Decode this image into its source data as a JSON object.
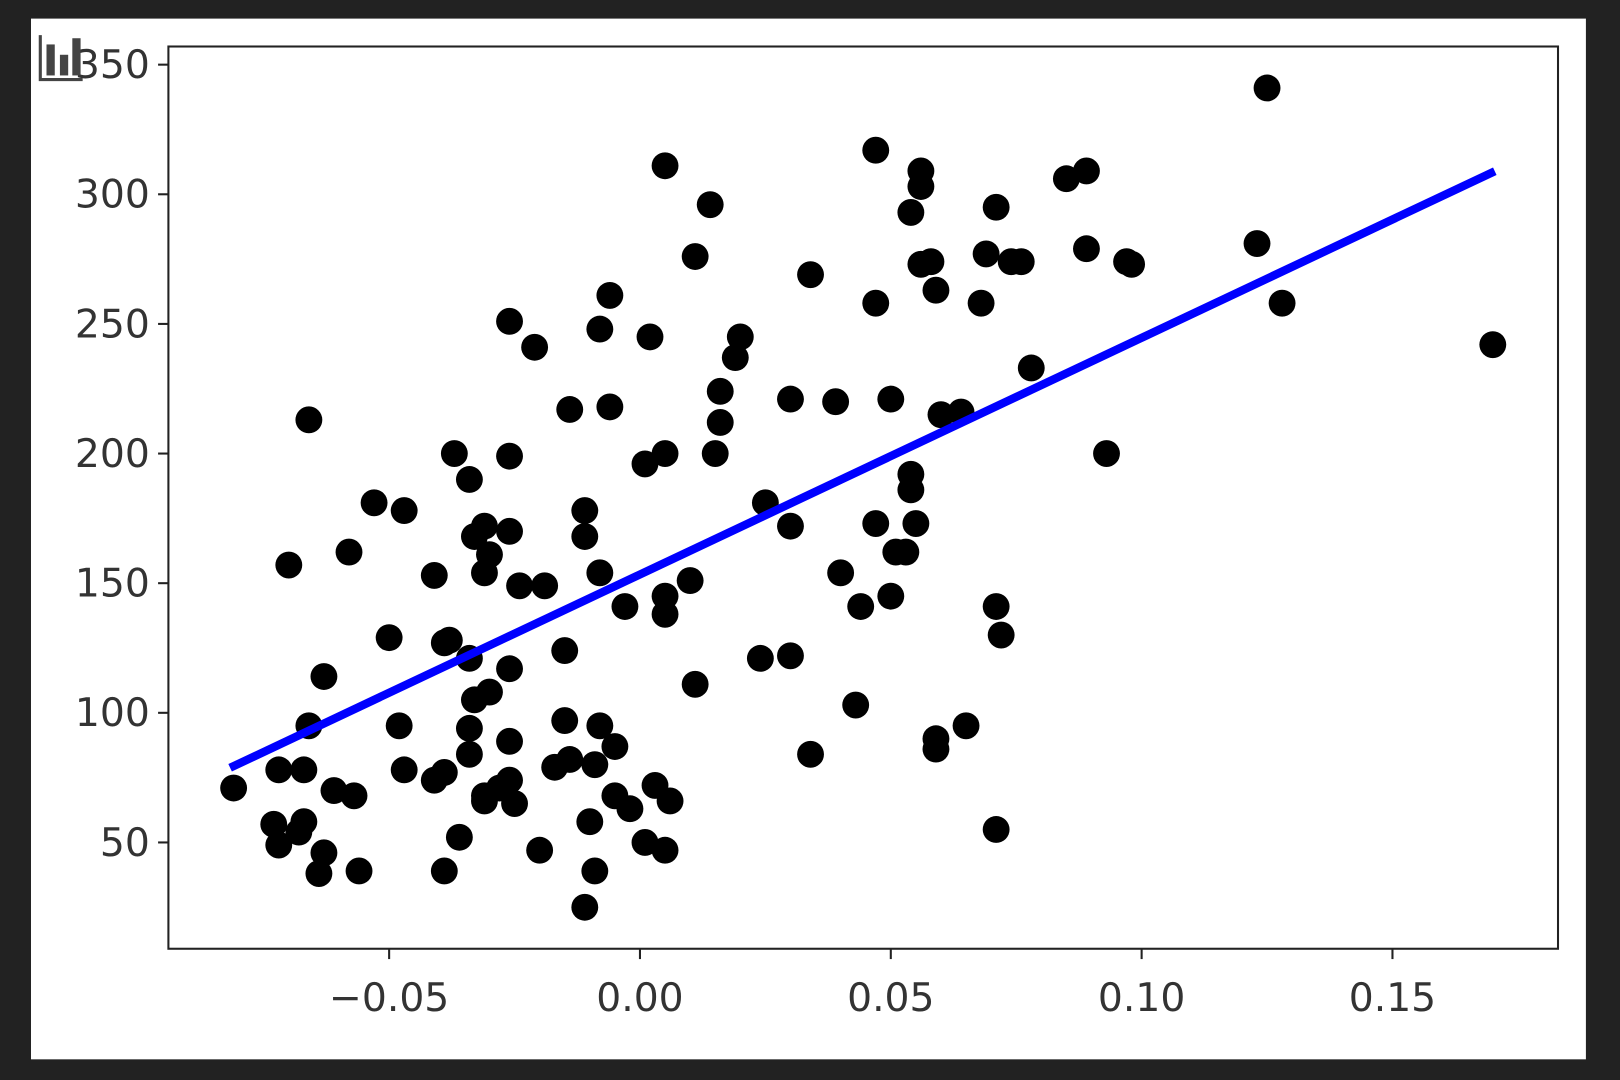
{
  "toolbar": {
    "icon": "bar-chart-icon"
  },
  "chart_data": {
    "type": "scatter",
    "title": "",
    "xlabel": "",
    "ylabel": "",
    "xlim": [
      -0.094,
      0.183
    ],
    "ylim": [
      9,
      357
    ],
    "grid": false,
    "legend": "none",
    "x_ticks": [
      -0.05,
      0.0,
      0.05,
      0.1,
      0.15
    ],
    "x_tick_labels": [
      "−0.05",
      "0.00",
      "0.05",
      "0.10",
      "0.15"
    ],
    "y_ticks": [
      50,
      100,
      150,
      200,
      250,
      300,
      350
    ],
    "y_tick_labels": [
      "50",
      "100",
      "150",
      "200",
      "250",
      "300",
      "350"
    ],
    "colors": {
      "points": "#000000",
      "fit_line": "#0000ff",
      "background": "#ffffff",
      "frame": "#222222"
    },
    "series": [
      {
        "type": "scatter",
        "points": [
          [
            0.125,
            341
          ],
          [
            0.047,
            317
          ],
          [
            0.005,
            311
          ],
          [
            0.056,
            309
          ],
          [
            0.089,
            309
          ],
          [
            0.085,
            306
          ],
          [
            0.056,
            303
          ],
          [
            0.014,
            296
          ],
          [
            0.054,
            293
          ],
          [
            0.071,
            295
          ],
          [
            0.011,
            276
          ],
          [
            0.123,
            281
          ],
          [
            0.089,
            279
          ],
          [
            0.069,
            277
          ],
          [
            0.074,
            274
          ],
          [
            0.076,
            274
          ],
          [
            0.097,
            274
          ],
          [
            0.098,
            273
          ],
          [
            0.056,
            273
          ],
          [
            0.058,
            274
          ],
          [
            0.034,
            269
          ],
          [
            0.059,
            263
          ],
          [
            -0.006,
            261
          ],
          [
            0.047,
            258
          ],
          [
            0.068,
            258
          ],
          [
            0.128,
            258
          ],
          [
            -0.026,
            251
          ],
          [
            -0.008,
            248
          ],
          [
            0.002,
            245
          ],
          [
            0.02,
            245
          ],
          [
            -0.021,
            241
          ],
          [
            0.17,
            242
          ],
          [
            0.019,
            237
          ],
          [
            0.078,
            233
          ],
          [
            0.016,
            224
          ],
          [
            0.03,
            221
          ],
          [
            0.039,
            220
          ],
          [
            0.05,
            221
          ],
          [
            -0.014,
            217
          ],
          [
            -0.006,
            218
          ],
          [
            0.016,
            212
          ],
          [
            0.06,
            215
          ],
          [
            0.064,
            216
          ],
          [
            -0.066,
            213
          ],
          [
            -0.037,
            200
          ],
          [
            -0.026,
            199
          ],
          [
            0.005,
            200
          ],
          [
            0.001,
            196
          ],
          [
            0.015,
            200
          ],
          [
            0.093,
            200
          ],
          [
            -0.034,
            190
          ],
          [
            0.054,
            192
          ],
          [
            0.054,
            186
          ],
          [
            -0.053,
            181
          ],
          [
            -0.047,
            178
          ],
          [
            -0.011,
            178
          ],
          [
            0.025,
            181
          ],
          [
            -0.033,
            168
          ],
          [
            -0.026,
            170
          ],
          [
            -0.011,
            168
          ],
          [
            0.047,
            173
          ],
          [
            0.055,
            173
          ],
          [
            0.03,
            172
          ],
          [
            -0.031,
            172
          ],
          [
            -0.058,
            162
          ],
          [
            -0.07,
            157
          ],
          [
            -0.03,
            161
          ],
          [
            -0.031,
            154
          ],
          [
            -0.041,
            153
          ],
          [
            -0.024,
            149
          ],
          [
            -0.019,
            149
          ],
          [
            -0.008,
            154
          ],
          [
            0.01,
            151
          ],
          [
            0.04,
            154
          ],
          [
            0.051,
            162
          ],
          [
            0.053,
            162
          ],
          [
            0.005,
            145
          ],
          [
            -0.003,
            141
          ],
          [
            0.005,
            138
          ],
          [
            0.044,
            141
          ],
          [
            0.05,
            145
          ],
          [
            0.071,
            141
          ],
          [
            0.072,
            130
          ],
          [
            -0.05,
            129
          ],
          [
            -0.039,
            127
          ],
          [
            -0.038,
            128
          ],
          [
            -0.015,
            124
          ],
          [
            -0.034,
            121
          ],
          [
            -0.026,
            117
          ],
          [
            0.024,
            121
          ],
          [
            0.03,
            122
          ],
          [
            -0.063,
            114
          ],
          [
            0.011,
            111
          ],
          [
            -0.03,
            108
          ],
          [
            -0.033,
            105
          ],
          [
            0.043,
            103
          ],
          [
            -0.066,
            95
          ],
          [
            -0.048,
            95
          ],
          [
            -0.015,
            97
          ],
          [
            -0.008,
            95
          ],
          [
            -0.034,
            94
          ],
          [
            0.065,
            95
          ],
          [
            0.059,
            90
          ],
          [
            0.059,
            86
          ],
          [
            -0.005,
            87
          ],
          [
            -0.026,
            89
          ],
          [
            0.034,
            84
          ],
          [
            -0.034,
            84
          ],
          [
            -0.072,
            78
          ],
          [
            -0.067,
            78
          ],
          [
            -0.047,
            78
          ],
          [
            -0.041,
            74
          ],
          [
            -0.039,
            77
          ],
          [
            -0.017,
            79
          ],
          [
            -0.014,
            82
          ],
          [
            -0.009,
            80
          ],
          [
            -0.026,
            74
          ],
          [
            -0.028,
            71
          ],
          [
            -0.081,
            71
          ],
          [
            -0.061,
            70
          ],
          [
            -0.057,
            68
          ],
          [
            -0.005,
            68
          ],
          [
            0.003,
            72
          ],
          [
            -0.031,
            66
          ],
          [
            -0.025,
            65
          ],
          [
            -0.002,
            63
          ],
          [
            0.006,
            66
          ],
          [
            -0.073,
            57
          ],
          [
            -0.067,
            58
          ],
          [
            -0.068,
            54
          ],
          [
            -0.072,
            49
          ],
          [
            -0.036,
            52
          ],
          [
            -0.01,
            58
          ],
          [
            0.071,
            55
          ],
          [
            0.001,
            50
          ],
          [
            0.005,
            47
          ],
          [
            -0.02,
            47
          ],
          [
            -0.063,
            46
          ],
          [
            -0.064,
            38
          ],
          [
            -0.056,
            39
          ],
          [
            -0.039,
            39
          ],
          [
            -0.009,
            39
          ],
          [
            -0.011,
            25
          ],
          [
            -0.031,
            68
          ]
        ]
      },
      {
        "type": "line",
        "x": [
          -0.0817,
          0.1704
        ],
        "y": [
          78.8,
          308.9
        ]
      }
    ]
  }
}
